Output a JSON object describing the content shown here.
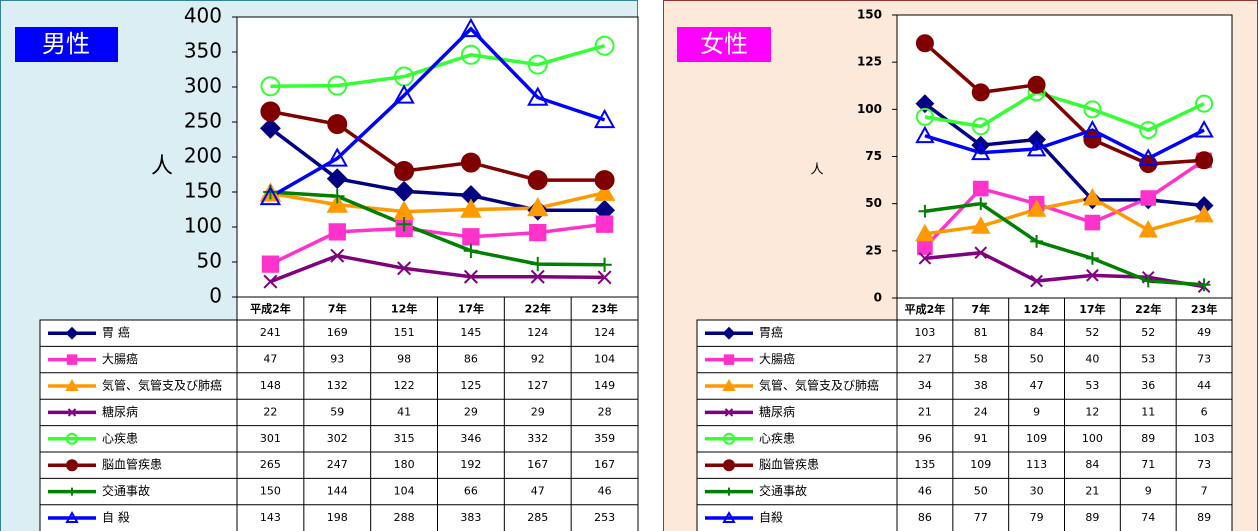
{
  "chart_data": [
    {
      "type": "line",
      "title": "男性",
      "y_label": "人",
      "categories": [
        "平成2年",
        "7年",
        "12年",
        "17年",
        "22年",
        "23年"
      ],
      "ylim": [
        0,
        400
      ],
      "yticks": [
        0,
        50,
        100,
        150,
        200,
        250,
        300,
        350,
        400
      ],
      "series": [
        {
          "name": "胃 癌",
          "color": "#000080",
          "marker": "diamond",
          "values": [
            241,
            169,
            151,
            145,
            124,
            124
          ]
        },
        {
          "name": "大腸癌",
          "color": "#ff33cc",
          "marker": "square",
          "values": [
            47,
            93,
            98,
            86,
            92,
            104
          ]
        },
        {
          "name": "気管、気管支及び肺癌",
          "color": "#ff9900",
          "marker": "triangle",
          "values": [
            148,
            132,
            122,
            125,
            127,
            149
          ]
        },
        {
          "name": "糖尿病",
          "color": "#800080",
          "marker": "x",
          "values": [
            22,
            59,
            41,
            29,
            29,
            28
          ]
        },
        {
          "name": "心疾患",
          "color": "#33ff33",
          "marker": "circle-open",
          "values": [
            301,
            302,
            315,
            346,
            332,
            359
          ]
        },
        {
          "name": "脳血管疾患",
          "color": "#800000",
          "marker": "circle",
          "values": [
            265,
            247,
            180,
            192,
            167,
            167
          ]
        },
        {
          "name": "交通事故",
          "color": "#008000",
          "marker": "plus",
          "values": [
            150,
            144,
            104,
            66,
            47,
            46
          ]
        },
        {
          "name": "自 殺",
          "color": "#0000ff",
          "marker": "triangle-open",
          "values": [
            143,
            198,
            288,
            383,
            285,
            253
          ]
        }
      ]
    },
    {
      "type": "line",
      "title": "女性",
      "y_label": "人",
      "categories": [
        "平成2年",
        "7年",
        "12年",
        "17年",
        "22年",
        "23年"
      ],
      "ylim": [
        0,
        150
      ],
      "yticks": [
        0,
        25,
        50,
        75,
        100,
        125,
        150
      ],
      "series": [
        {
          "name": "胃癌",
          "color": "#000080",
          "marker": "diamond",
          "values": [
            103,
            81,
            84,
            52,
            52,
            49
          ]
        },
        {
          "name": "大腸癌",
          "color": "#ff33cc",
          "marker": "square",
          "values": [
            27,
            58,
            50,
            40,
            53,
            73
          ]
        },
        {
          "name": "気管、気管支及び肺癌",
          "color": "#ff9900",
          "marker": "triangle",
          "values": [
            34,
            38,
            47,
            53,
            36,
            44
          ]
        },
        {
          "name": "糖尿病",
          "color": "#800080",
          "marker": "x",
          "values": [
            21,
            24,
            9,
            12,
            11,
            6
          ]
        },
        {
          "name": "心疾患",
          "color": "#33ff33",
          "marker": "circle-open",
          "values": [
            96,
            91,
            109,
            100,
            89,
            103
          ]
        },
        {
          "name": "脳血管疾患",
          "color": "#800000",
          "marker": "circle",
          "values": [
            135,
            109,
            113,
            84,
            71,
            73
          ]
        },
        {
          "name": "交通事故",
          "color": "#008000",
          "marker": "plus",
          "values": [
            46,
            50,
            30,
            21,
            9,
            7
          ]
        },
        {
          "name": "自殺",
          "color": "#0000ff",
          "marker": "triangle-open",
          "values": [
            86,
            77,
            79,
            89,
            74,
            89
          ]
        }
      ]
    }
  ]
}
